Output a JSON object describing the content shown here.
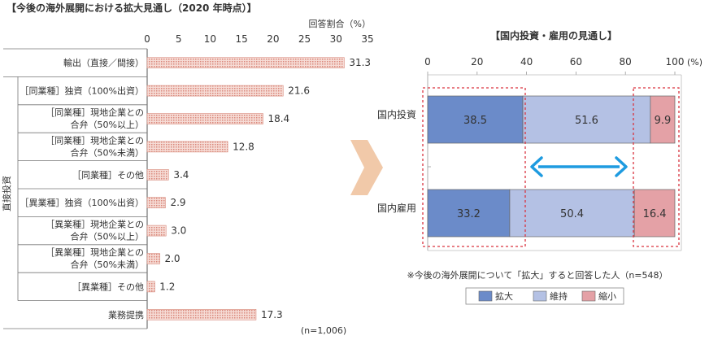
{
  "colors": {
    "bar_fill": "#f3c9c0",
    "bar_stroke": "#d98c7e",
    "expand": "#6b8bc9",
    "maintain": "#b4c1e4",
    "shrink": "#e4a1a6",
    "arrow": "#1e9be0",
    "dashed": "#d9333f",
    "chevron": "#f1c9a9"
  },
  "chart_data": [
    {
      "type": "bar",
      "orientation": "horizontal",
      "title": "【今後の海外展開における拡大見通し（2020 年時点）】",
      "unit_label": "回答割合（%）",
      "group_label": "直接投資",
      "note": "(n=1,006)",
      "xlim": [
        0,
        35
      ],
      "ticks": [
        0,
        5,
        10,
        15,
        20,
        25,
        30,
        35
      ],
      "categories": [
        {
          "lines": [
            "輸出（直接／間接）"
          ],
          "value": 31.3,
          "label": "31.3"
        },
        {
          "lines": [
            "［同業種］独資（100%出資）"
          ],
          "value": 21.6,
          "label": "21.6"
        },
        {
          "lines": [
            "［同業種］現地企業との",
            "合弁（50%以上）"
          ],
          "value": 18.4,
          "label": "18.4"
        },
        {
          "lines": [
            "［同業種］現地企業との",
            "合弁（50%未満）"
          ],
          "value": 12.8,
          "label": "12.8"
        },
        {
          "lines": [
            "［同業種］その他"
          ],
          "value": 3.4,
          "label": "3.4"
        },
        {
          "lines": [
            "［異業種］独資（100%出資）"
          ],
          "value": 2.9,
          "label": "2.9"
        },
        {
          "lines": [
            "［異業種］現地企業との",
            "合弁（50%以上）"
          ],
          "value": 3.0,
          "label": "3.0"
        },
        {
          "lines": [
            "［異業種］現地企業との",
            "合弁（50%未満）"
          ],
          "value": 2.0,
          "label": "2.0"
        },
        {
          "lines": [
            "［異業種］その他"
          ],
          "value": 1.2,
          "label": "1.2"
        },
        {
          "lines": [
            "業務提携"
          ],
          "value": 17.3,
          "label": "17.3"
        }
      ]
    },
    {
      "type": "bar",
      "orientation": "horizontal",
      "stacked": true,
      "title": "【国内投資・雇用の見通し】",
      "unit_label": "(%)",
      "xlim": [
        0,
        100
      ],
      "ticks": [
        0,
        20,
        40,
        60,
        80,
        100
      ],
      "categories": [
        "国内投資",
        "国内雇用"
      ],
      "series": [
        {
          "name": "拡大",
          "values": [
            38.5,
            33.2
          ],
          "labels": [
            "38.5",
            "33.2"
          ]
        },
        {
          "name": "維持",
          "values": [
            51.6,
            50.4
          ],
          "labels": [
            "51.6",
            "50.4"
          ]
        },
        {
          "name": "縮小",
          "values": [
            9.9,
            16.4
          ],
          "labels": [
            "9.9",
            "16.4"
          ]
        }
      ],
      "note": "※今後の海外展開について「拡大」すると回答した人（n=548）"
    }
  ]
}
